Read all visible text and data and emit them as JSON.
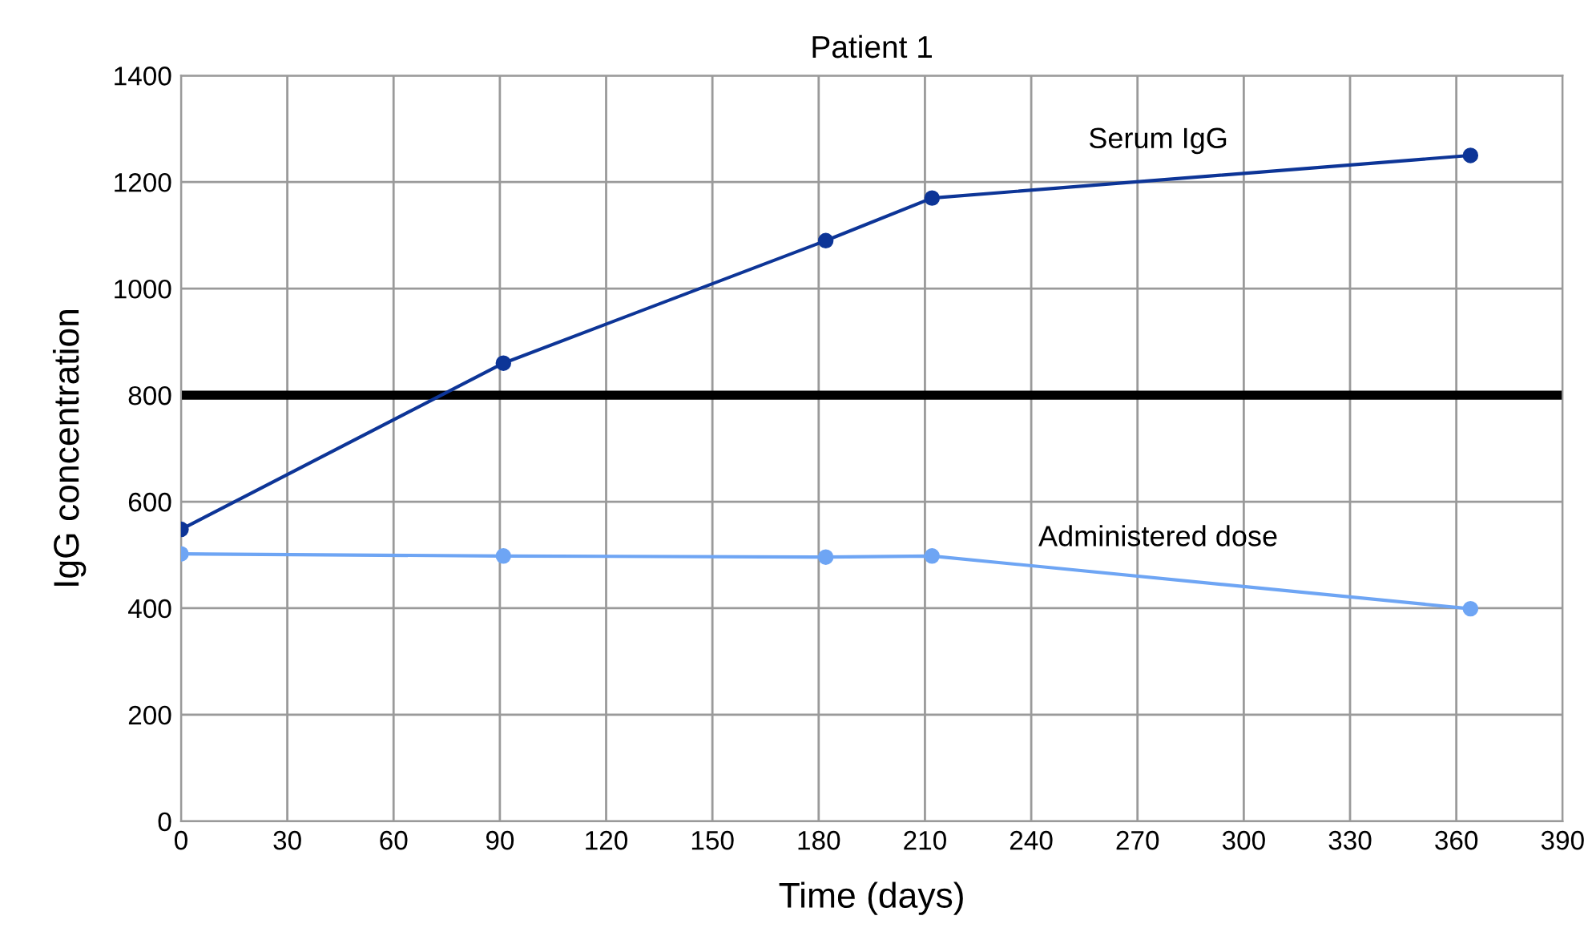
{
  "chart_data": {
    "type": "line",
    "title": "Patient 1",
    "xlabel": "Time (days)",
    "ylabel": "IgG concentration",
    "series": [
      {
        "name": "Serum IgG",
        "color": "#0d3597",
        "x": [
          0,
          91,
          182,
          212,
          364
        ],
        "values": [
          548,
          860,
          1090,
          1170,
          1250
        ]
      },
      {
        "name": "Administered dose",
        "color": "#6ea5f4",
        "x": [
          0,
          91,
          182,
          212,
          364
        ],
        "values": [
          502,
          498,
          496,
          498,
          399
        ]
      }
    ],
    "xlim": [
      0,
      390
    ],
    "xticks": [
      0,
      30,
      60,
      90,
      120,
      150,
      180,
      210,
      240,
      270,
      300,
      330,
      360,
      390
    ],
    "ylim": [
      0,
      1400
    ],
    "yticks": [
      0,
      200,
      400,
      600,
      800,
      1000,
      1200,
      1400
    ],
    "ref_lines": [
      {
        "axis": "y",
        "value": 800,
        "color": "#000000"
      }
    ],
    "grid": true,
    "legend": false,
    "marker": "circle",
    "line_style": "solid"
  }
}
